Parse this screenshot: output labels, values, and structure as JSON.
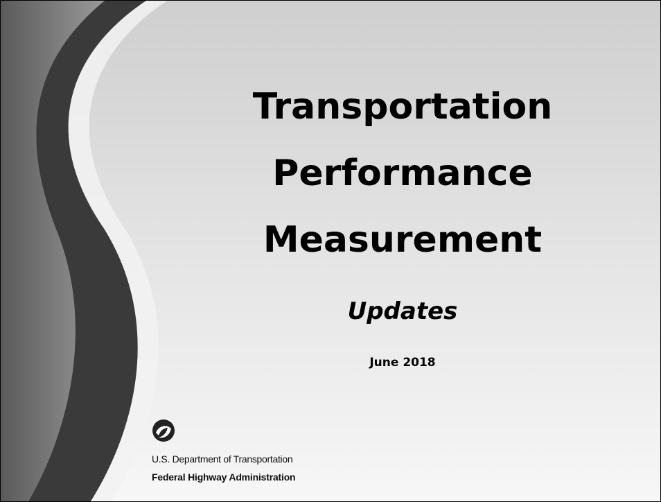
{
  "title_lines": [
    "Transportation",
    "Performance",
    "Measurement"
  ],
  "subtitle": "Updates",
  "date": "June 2018",
  "footer": {
    "department": "U.S. Department of Transportation",
    "agency": "Federal Highway Administration"
  }
}
